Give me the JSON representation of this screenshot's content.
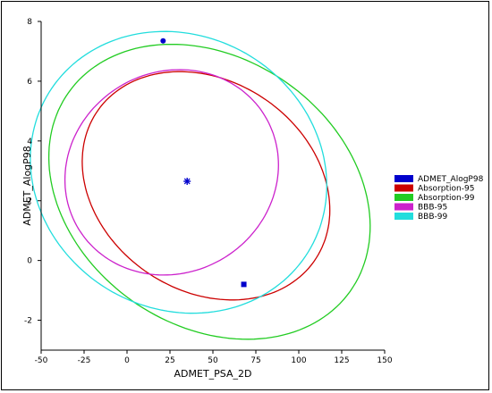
{
  "chart_data": {
    "type": "scatter",
    "xlabel": "ADMET_PSA_2D",
    "ylabel": "ADMET_AlogP98",
    "xlim": [
      -50,
      150
    ],
    "ylim": [
      -3,
      8
    ],
    "xticks": [
      "-50",
      "-25",
      "0",
      "25",
      "50",
      "75",
      "100",
      "125",
      "150"
    ],
    "yticks": [
      "8",
      "6",
      "4",
      "2",
      "0",
      "-2"
    ],
    "grid": false,
    "legend_placement": "right",
    "points": [
      {
        "x": 21,
        "y": 7.35,
        "marker": "circle",
        "color": "#0000cc"
      },
      {
        "x": 35,
        "y": 2.65,
        "marker": "star",
        "color": "#0000cc"
      },
      {
        "x": 68,
        "y": -0.8,
        "marker": "square",
        "color": "#0000cc"
      }
    ],
    "ellipses": [
      {
        "name": "Absorption-95",
        "color": "#cc0000",
        "cx": 46,
        "cy": 2.5,
        "rx": 78,
        "ry": 3.45,
        "angle_deg": 40
      },
      {
        "name": "Absorption-99",
        "color": "#22cc22",
        "cx": 48,
        "cy": 2.3,
        "rx": 102,
        "ry": 4.4,
        "angle_deg": 40
      },
      {
        "name": "BBB-95",
        "color": "#cc22cc",
        "cx": 26,
        "cy": 2.95,
        "rx": 60,
        "ry": 3.55,
        "angle_deg": 43
      },
      {
        "name": "BBB-99",
        "color": "#22dddd",
        "cx": 30,
        "cy": 2.95,
        "rx": 90,
        "ry": 4.5,
        "angle_deg": 43
      }
    ],
    "legend": [
      {
        "label": "ADMET_AlogP98",
        "color": "#0000cc"
      },
      {
        "label": "Absorption-95",
        "color": "#cc0000"
      },
      {
        "label": "Absorption-99",
        "color": "#22cc22"
      },
      {
        "label": "BBB-95",
        "color": "#cc22cc"
      },
      {
        "label": "BBB-99",
        "color": "#22dddd"
      }
    ]
  }
}
